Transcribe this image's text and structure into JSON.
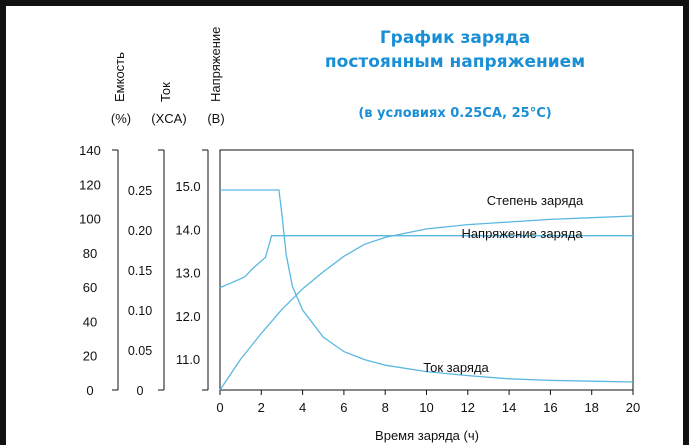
{
  "chart_data": {
    "type": "line",
    "title": [
      "График заряда",
      "постоянным напряжением"
    ],
    "subtitle": "(в условиях 0.25CA, 25°C)",
    "xlabel": "Время заряда (ч)",
    "xlim": [
      0,
      20
    ],
    "x_ticks": [
      "0",
      "2",
      "4",
      "6",
      "8",
      "10",
      "12",
      "14",
      "16",
      "18",
      "20"
    ],
    "axes": {
      "capacity": {
        "label": "Емкость",
        "unit": "(%)",
        "ticks": [
          "140",
          "120",
          "100",
          "80",
          "60",
          "40",
          "20",
          "0"
        ],
        "ylim": [
          0,
          140
        ]
      },
      "current": {
        "label": "Ток",
        "unit": "(XCA)",
        "ticks": [
          "0.25",
          "0.20",
          "0.15",
          "0.10",
          "0.05",
          "0"
        ],
        "ylim": [
          0,
          0.25
        ]
      },
      "voltage": {
        "label": "Напряжение",
        "unit": "(В)",
        "ticks": [
          "15.0",
          "14.0",
          "13.0",
          "12.0",
          "11.0"
        ],
        "ylim": [
          10.0,
          15.0
        ]
      }
    },
    "series": [
      {
        "name": "Степень заряда",
        "axis": "capacity",
        "x": [
          0,
          0.5,
          1,
          2,
          3,
          4,
          5,
          6,
          7,
          8,
          10,
          12,
          14,
          16,
          18,
          20
        ],
        "values": [
          0,
          9,
          18,
          33,
          47,
          59,
          69,
          78,
          85,
          89,
          94,
          96.5,
          98,
          99.5,
          100.5,
          101.5
        ]
      },
      {
        "name": "Напряжение заряда",
        "axis": "voltage",
        "x": [
          0,
          0.5,
          1.2,
          1.6,
          2.2,
          2.5,
          3,
          5,
          10,
          15,
          20
        ],
        "values": [
          12.65,
          12.75,
          12.9,
          13.1,
          13.35,
          13.85,
          13.85,
          13.85,
          13.85,
          13.85,
          13.85
        ]
      },
      {
        "name": "Ток заряда",
        "axis": "current",
        "x": [
          0,
          1,
          2,
          2.85,
          3,
          3.2,
          3.5,
          4,
          5,
          6,
          7,
          8,
          10,
          12,
          14,
          16,
          18,
          20
        ],
        "values": [
          0.25,
          0.25,
          0.25,
          0.25,
          0.22,
          0.17,
          0.13,
          0.1,
          0.066,
          0.048,
          0.038,
          0.031,
          0.023,
          0.018,
          0.014,
          0.012,
          0.011,
          0.01
        ]
      }
    ],
    "colors": {
      "line": "#5ab8e0",
      "title": "#1a8fd6",
      "text": "#111111",
      "frame": "#111111"
    }
  }
}
